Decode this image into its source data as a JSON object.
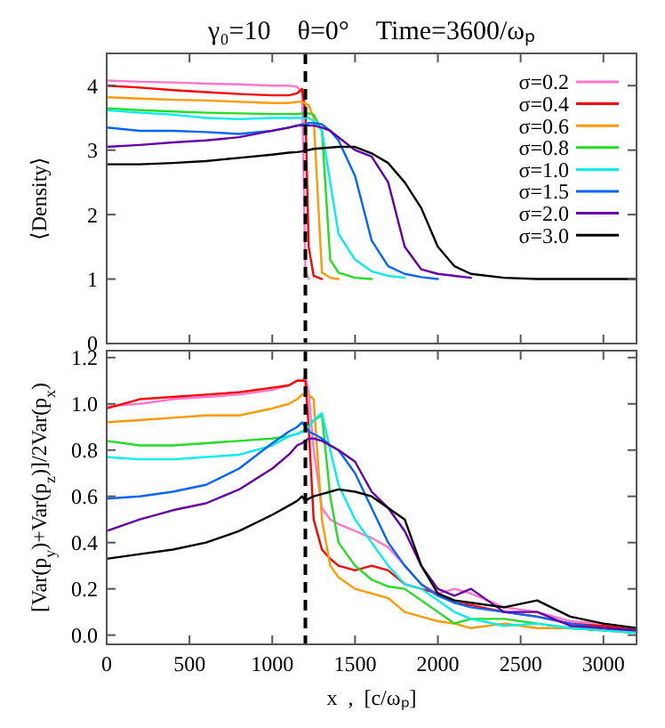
{
  "chart_data": [
    {
      "type": "line",
      "title": "γ₀=10    θ=0°    Time=3600/ωₚ",
      "ylabel": "⟨Density⟩",
      "xlim": [
        0,
        3200
      ],
      "xticks": [
        0,
        500,
        1000,
        1500,
        2000,
        2500,
        3000
      ],
      "ylim": [
        0,
        4.5
      ],
      "yticks": [
        0,
        1,
        2,
        3,
        4
      ],
      "tick_labels": "y",
      "legend": "top right",
      "grid": false,
      "marker": "none",
      "line_style": "solid",
      "x": [
        0,
        200,
        400,
        600,
        800,
        1000,
        1100,
        1150,
        1180,
        1200,
        1220,
        1250,
        1300,
        1350,
        1400,
        1500,
        1600,
        1700,
        1800,
        1900,
        2000,
        2100,
        2200,
        2400,
        2600,
        2800,
        3000,
        3200
      ],
      "ref_lines": [
        {
          "axis": "x",
          "value": 1200,
          "line_style": "dashed",
          "color": "#000000"
        }
      ],
      "series": [
        {
          "name": "σ=0.2",
          "color": "#ff77cc",
          "x": [
            0,
            200,
            400,
            600,
            800,
            1000,
            1100,
            1150,
            1180,
            1200,
            1220
          ],
          "values": [
            4.08,
            4.06,
            4.05,
            4.03,
            4.02,
            4.0,
            4.0,
            3.98,
            3.9,
            1.15,
            1.0
          ]
        },
        {
          "name": "σ=0.4",
          "color": "#ff0000",
          "x": [
            0,
            200,
            400,
            600,
            800,
            1000,
            1100,
            1150,
            1180,
            1200,
            1220,
            1250,
            1300
          ],
          "values": [
            4.0,
            3.97,
            3.93,
            3.9,
            3.87,
            3.85,
            3.85,
            3.88,
            3.95,
            3.6,
            1.5,
            1.05,
            1.0
          ]
        },
        {
          "name": "σ=0.6",
          "color": "#ff9900",
          "x": [
            0,
            200,
            400,
            600,
            800,
            1000,
            1100,
            1150,
            1180,
            1200,
            1220,
            1250,
            1300,
            1350,
            1400
          ],
          "values": [
            3.82,
            3.8,
            3.78,
            3.77,
            3.75,
            3.73,
            3.73,
            3.75,
            3.75,
            3.72,
            3.7,
            3.5,
            1.1,
            1.02,
            1.0
          ]
        },
        {
          "name": "σ=0.8",
          "color": "#22dd22",
          "x": [
            0,
            200,
            400,
            600,
            800,
            1000,
            1100,
            1150,
            1180,
            1200,
            1220,
            1250,
            1300,
            1350,
            1400,
            1500,
            1600
          ],
          "values": [
            3.65,
            3.62,
            3.6,
            3.58,
            3.57,
            3.56,
            3.56,
            3.56,
            3.57,
            3.57,
            3.57,
            3.55,
            3.3,
            1.3,
            1.1,
            1.02,
            1.0
          ]
        },
        {
          "name": "σ=1.0",
          "color": "#00eeee",
          "x": [
            0,
            200,
            400,
            600,
            800,
            1000,
            1100,
            1150,
            1180,
            1200,
            1220,
            1250,
            1300,
            1350,
            1400,
            1500,
            1600,
            1700,
            1800
          ],
          "values": [
            3.62,
            3.58,
            3.55,
            3.5,
            3.48,
            3.5,
            3.5,
            3.5,
            3.5,
            3.5,
            3.5,
            3.45,
            3.3,
            2.5,
            1.7,
            1.3,
            1.12,
            1.05,
            1.02
          ]
        },
        {
          "name": "σ=1.5",
          "color": "#0066ff",
          "x": [
            0,
            200,
            400,
            600,
            800,
            1000,
            1100,
            1150,
            1180,
            1200,
            1220,
            1250,
            1300,
            1350,
            1400,
            1500,
            1600,
            1700,
            1800,
            1900,
            2000
          ],
          "values": [
            3.35,
            3.3,
            3.3,
            3.28,
            3.25,
            3.3,
            3.35,
            3.38,
            3.4,
            3.4,
            3.42,
            3.42,
            3.4,
            3.3,
            3.15,
            2.6,
            1.6,
            1.2,
            1.08,
            1.03,
            1.0
          ]
        },
        {
          "name": "σ=2.0",
          "color": "#6600aa",
          "x": [
            0,
            200,
            400,
            600,
            800,
            1000,
            1100,
            1150,
            1180,
            1200,
            1220,
            1250,
            1300,
            1350,
            1400,
            1500,
            1600,
            1700,
            1800,
            1900,
            2000,
            2100,
            2200
          ],
          "values": [
            3.05,
            3.08,
            3.12,
            3.15,
            3.2,
            3.3,
            3.35,
            3.38,
            3.38,
            3.38,
            3.38,
            3.38,
            3.35,
            3.3,
            3.2,
            3.0,
            2.9,
            2.5,
            1.5,
            1.15,
            1.08,
            1.05,
            1.02
          ]
        },
        {
          "name": "σ=3.0",
          "color": "#000000",
          "values": [
            2.78,
            2.78,
            2.8,
            2.83,
            2.88,
            2.93,
            2.96,
            2.97,
            2.98,
            3.0,
            3.0,
            3.02,
            3.03,
            3.04,
            3.05,
            3.05,
            2.95,
            2.8,
            2.5,
            2.1,
            1.5,
            1.2,
            1.08,
            1.02,
            1.0,
            1.0,
            1.0,
            1.0
          ]
        }
      ]
    },
    {
      "type": "line",
      "xlabel": "x  ,  [c/ωₚ]",
      "ylabel": "[Var(p$_{y}$)+Var(p$_{z}$)]/2Var(p$_{x}$)",
      "xlim": [
        0,
        3200
      ],
      "xticks": [
        0,
        500,
        1000,
        1500,
        2000,
        2500,
        3000
      ],
      "ylim": [
        -0.04,
        1.23
      ],
      "yticks": [
        {
          "value": 0,
          "label": "0.0"
        },
        {
          "value": 0.2,
          "label": "0.2"
        },
        {
          "value": 0.4,
          "label": "0.4"
        },
        {
          "value": 0.6,
          "label": "0.6"
        },
        {
          "value": 0.8,
          "label": "0.8"
        },
        {
          "value": 1,
          "label": "1.0"
        },
        {
          "value": 1.2,
          "label": "1.2"
        }
      ],
      "legend": false,
      "grid": false,
      "marker": "none",
      "line_style": "solid",
      "x": [
        0,
        200,
        400,
        600,
        800,
        1000,
        1100,
        1150,
        1180,
        1200,
        1220,
        1250,
        1300,
        1350,
        1400,
        1500,
        1600,
        1700,
        1800,
        1900,
        2000,
        2100,
        2200,
        2400,
        2600,
        2800,
        3000,
        3200
      ],
      "ref_lines": [
        {
          "axis": "x",
          "value": 1200,
          "line_style": "dashed",
          "color": "#000000"
        }
      ],
      "series": [
        {
          "color": "#ff77cc",
          "values": [
            0.99,
            1.0,
            1.02,
            1.03,
            1.04,
            1.06,
            1.08,
            1.1,
            1.1,
            1.12,
            1.05,
            0.8,
            0.55,
            0.5,
            0.48,
            0.45,
            0.42,
            0.38,
            0.3,
            0.22,
            0.18,
            0.2,
            0.18,
            0.12,
            0.1,
            0.06,
            0.05,
            0.02
          ]
        },
        {
          "color": "#ff0000",
          "values": [
            0.98,
            1.02,
            1.03,
            1.04,
            1.05,
            1.07,
            1.08,
            1.1,
            1.1,
            1.1,
            0.9,
            0.5,
            0.37,
            0.33,
            0.3,
            0.28,
            0.3,
            0.28,
            0.22,
            0.2,
            0.18,
            0.14,
            0.13,
            0.1,
            0.08,
            0.05,
            0.04,
            0.02
          ]
        },
        {
          "color": "#ff9900",
          "values": [
            0.92,
            0.93,
            0.94,
            0.95,
            0.95,
            0.98,
            1.0,
            1.02,
            1.04,
            1.04,
            1.04,
            1.02,
            0.5,
            0.3,
            0.25,
            0.2,
            0.18,
            0.16,
            0.1,
            0.08,
            0.06,
            0.05,
            0.03,
            0.05,
            0.03,
            0.03,
            0.02,
            0.01
          ]
        },
        {
          "color": "#22dd22",
          "values": [
            0.84,
            0.82,
            0.82,
            0.83,
            0.84,
            0.85,
            0.86,
            0.87,
            0.88,
            0.89,
            0.9,
            0.93,
            0.95,
            0.6,
            0.4,
            0.3,
            0.24,
            0.21,
            0.2,
            0.15,
            0.1,
            0.05,
            0.07,
            0.07,
            0.05,
            0.03,
            0.02,
            0.01
          ]
        },
        {
          "color": "#00eeee",
          "values": [
            0.77,
            0.76,
            0.76,
            0.77,
            0.78,
            0.82,
            0.86,
            0.87,
            0.88,
            0.88,
            0.9,
            0.93,
            0.96,
            0.8,
            0.65,
            0.5,
            0.4,
            0.3,
            0.22,
            0.2,
            0.15,
            0.1,
            0.07,
            0.04,
            0.05,
            0.03,
            0.02,
            0.01
          ]
        },
        {
          "color": "#0066ff",
          "values": [
            0.59,
            0.6,
            0.62,
            0.65,
            0.72,
            0.83,
            0.88,
            0.9,
            0.92,
            0.9,
            0.88,
            0.87,
            0.85,
            0.82,
            0.8,
            0.7,
            0.55,
            0.4,
            0.3,
            0.22,
            0.17,
            0.14,
            0.12,
            0.1,
            0.08,
            0.05,
            0.03,
            0.02
          ]
        },
        {
          "color": "#6600aa",
          "values": [
            0.45,
            0.5,
            0.54,
            0.57,
            0.63,
            0.72,
            0.78,
            0.82,
            0.83,
            0.84,
            0.85,
            0.85,
            0.84,
            0.82,
            0.8,
            0.75,
            0.62,
            0.55,
            0.45,
            0.3,
            0.2,
            0.17,
            0.2,
            0.1,
            0.1,
            0.04,
            0.03,
            0.02
          ]
        },
        {
          "color": "#000000",
          "values": [
            0.33,
            0.35,
            0.37,
            0.4,
            0.45,
            0.52,
            0.56,
            0.58,
            0.6,
            0.58,
            0.59,
            0.6,
            0.61,
            0.62,
            0.63,
            0.62,
            0.6,
            0.55,
            0.5,
            0.3,
            0.18,
            0.15,
            0.14,
            0.12,
            0.15,
            0.08,
            0.05,
            0.03
          ]
        }
      ]
    }
  ]
}
